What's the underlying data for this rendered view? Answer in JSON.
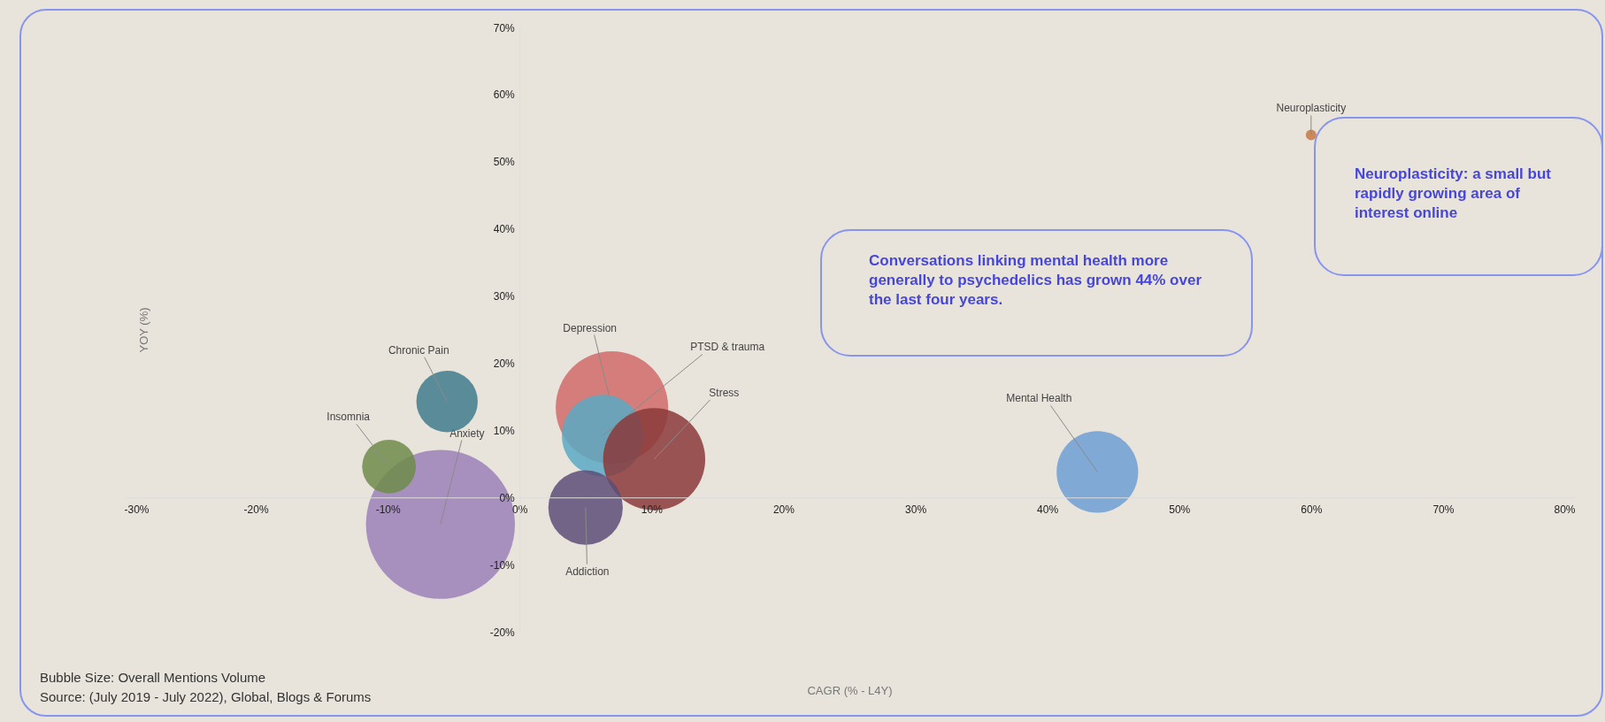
{
  "chart_data": {
    "type": "bubble",
    "xlabel": "CAGR (% - L4Y)",
    "ylabel": "YOY (%)",
    "xlim": [
      -30,
      80
    ],
    "ylim": [
      -20,
      70
    ],
    "xticks": [
      {
        "value": -30,
        "label": "-30%"
      },
      {
        "value": -20,
        "label": "-20%"
      },
      {
        "value": -10,
        "label": "-10%"
      },
      {
        "value": 0,
        "label": "0%"
      },
      {
        "value": 10,
        "label": "10%"
      },
      {
        "value": 20,
        "label": "20%"
      },
      {
        "value": 30,
        "label": "30%"
      },
      {
        "value": 40,
        "label": "40%"
      },
      {
        "value": 50,
        "label": "50%"
      },
      {
        "value": 60,
        "label": "60%"
      },
      {
        "value": 70,
        "label": "70%"
      },
      {
        "value": 80,
        "label": "80%"
      }
    ],
    "yticks": [
      {
        "value": -20,
        "label": "-20%"
      },
      {
        "value": -10,
        "label": "-10%"
      },
      {
        "value": 0,
        "label": "0%"
      },
      {
        "value": 10,
        "label": "10%"
      },
      {
        "value": 20,
        "label": "20%"
      },
      {
        "value": 30,
        "label": "30%"
      },
      {
        "value": 40,
        "label": "40%"
      },
      {
        "value": 50,
        "label": "50%"
      },
      {
        "value": 60,
        "label": "60%"
      },
      {
        "value": 70,
        "label": "70%"
      }
    ],
    "series": [
      {
        "name": "Anxiety",
        "color": "#9b80b8",
        "x": [
          -6
        ],
        "values": [
          -4
        ],
        "sizes": [
          1
        ]
      },
      {
        "name": "Depression",
        "color": "#d06b69",
        "x": [
          7
        ],
        "values": [
          13.4
        ],
        "sizes": [
          0.57
        ]
      },
      {
        "name": "PTSD & trauma",
        "color": "#5aa9c4",
        "x": [
          6.3
        ],
        "values": [
          9.2
        ],
        "sizes": [
          0.3
        ]
      },
      {
        "name": "Stress",
        "color": "#8a3a3a",
        "x": [
          10.2
        ],
        "values": [
          5.7
        ],
        "sizes": [
          0.47
        ]
      },
      {
        "name": "Addiction",
        "color": "#5d4e78",
        "x": [
          5
        ],
        "values": [
          -1.5
        ],
        "sizes": [
          0.25
        ]
      },
      {
        "name": "Mental Health",
        "color": "#6f9fd4",
        "x": [
          43.8
        ],
        "values": [
          3.8
        ],
        "sizes": [
          0.3
        ]
      },
      {
        "name": "Chronic Pain",
        "color": "#3f7d8c",
        "x": [
          -5.5
        ],
        "values": [
          14.3
        ],
        "sizes": [
          0.17
        ]
      },
      {
        "name": "Insomnia",
        "color": "#6e8c4a",
        "x": [
          -9.9
        ],
        "values": [
          4.6
        ],
        "sizes": [
          0.13
        ]
      },
      {
        "name": "Neuroplasticity",
        "color": "#c87941",
        "x": [
          60
        ],
        "values": [
          54
        ],
        "sizes": [
          0.005
        ]
      }
    ],
    "annotations": [
      "Conversations linking mental health more generally to psychedelics has grown 44% over the last four years.",
      "Neuroplasticity: a small but rapidly growing area of interest online",
      "Bubble Size: Overall Mentions Volume",
      "Source: (July 2019 - July 2022), Global, Blogs & Forums"
    ]
  }
}
